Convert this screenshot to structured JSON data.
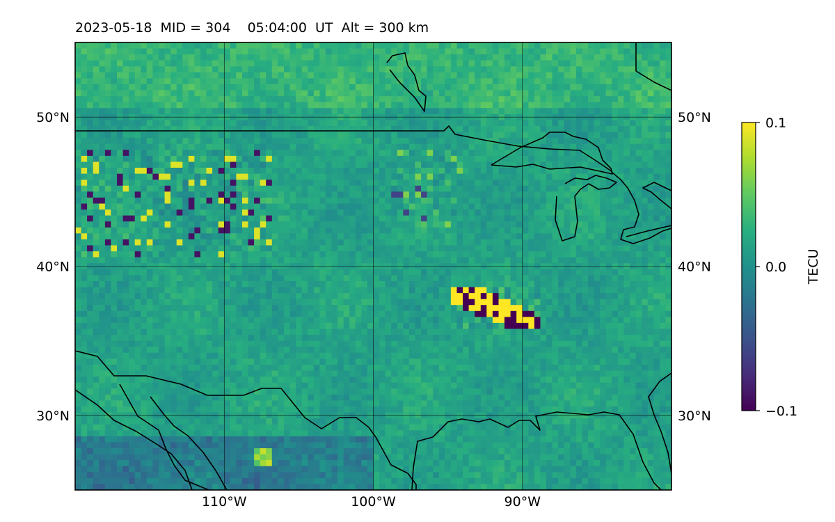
{
  "title": {
    "date": "2023-05-18",
    "mid": "MID = 304",
    "time": "05:04:00  UT",
    "alt": "Alt = 300 km"
  },
  "map": {
    "extent": {
      "lon": [
        -120,
        -80
      ],
      "lat": [
        25,
        55
      ]
    },
    "lat_ticks": [
      {
        "value": 50,
        "label": "50°N"
      },
      {
        "value": 40,
        "label": "40°N"
      },
      {
        "value": 30,
        "label": "30°N"
      }
    ],
    "lon_ticks": [
      {
        "value": -110,
        "label": "110°W"
      },
      {
        "value": -100,
        "label": "100°W"
      },
      {
        "value": -90,
        "label": "90°W"
      }
    ],
    "gridlines": true
  },
  "colorbar": {
    "label": "TECU",
    "colormap": "viridis",
    "range": [
      -0.1,
      0.1
    ],
    "ticks": [
      {
        "value": 0.1,
        "label": "0.1"
      },
      {
        "value": 0.0,
        "label": "0.0"
      },
      {
        "value": -0.1,
        "label": "−0.1"
      }
    ]
  },
  "field": {
    "background_tecu": 0.015,
    "noise_tecu": 0.012,
    "features": [
      {
        "name": "northern-plains-speckle",
        "lon": [
          -120,
          -107
        ],
        "lat": [
          41,
          48
        ],
        "strength_tecu": 0.09
      },
      {
        "name": "upper-midwest-speckle",
        "lon": [
          -99,
          -94
        ],
        "lat": [
          43,
          48
        ],
        "strength_tecu": 0.06
      },
      {
        "name": "kansas-missouri-band",
        "lon": [
          -95,
          -89
        ],
        "lat": [
          36,
          39
        ],
        "strength_tecu": 0.1
      },
      {
        "name": "mexico-bright-patch",
        "lon": [
          -108,
          -107
        ],
        "lat": [
          27,
          28
        ],
        "strength_tecu": 0.1
      },
      {
        "name": "northern-mexico-low",
        "lon": [
          -120,
          -100
        ],
        "lat": [
          25,
          29
        ],
        "strength_tecu": -0.04
      },
      {
        "name": "northern-edge-high",
        "lon": [
          -120,
          -80
        ],
        "lat": [
          51,
          55
        ],
        "strength_tecu": 0.02
      }
    ]
  }
}
